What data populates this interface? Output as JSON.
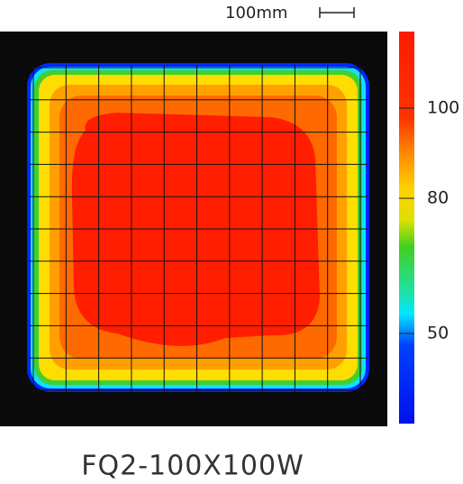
{
  "chart_data": {
    "type": "heatmap",
    "title": "FQ2-100X100W",
    "scale_label": "100mm",
    "zlim": [
      30,
      117
    ],
    "zticks": [
      50,
      80,
      100
    ]
  }
}
